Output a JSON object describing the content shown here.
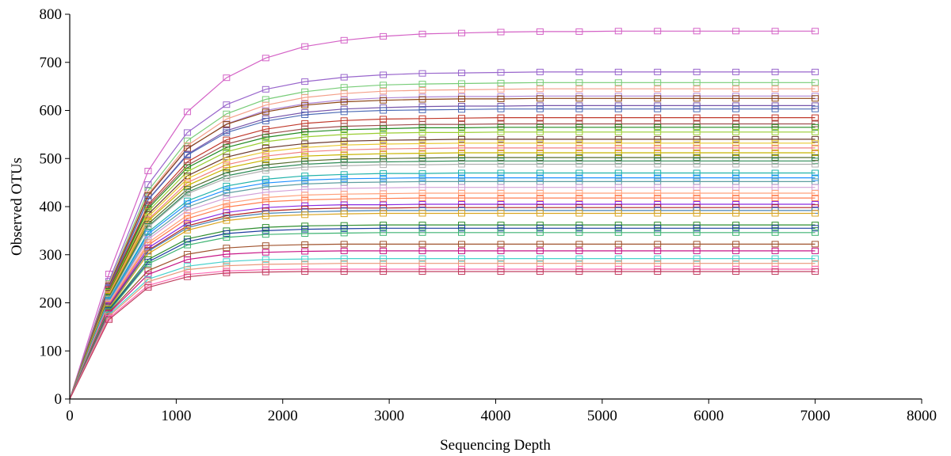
{
  "chart_data": {
    "type": "line",
    "xlabel": "Sequencing Depth",
    "ylabel": "Observed OTUs",
    "xlim": [
      0,
      8000
    ],
    "ylim": [
      0,
      800
    ],
    "xticks": [
      "0",
      "1000",
      "2000",
      "3000",
      "4000",
      "5000",
      "6000",
      "7000",
      "8000"
    ],
    "yticks": [
      "0",
      "100",
      "200",
      "300",
      "400",
      "500",
      "600",
      "700",
      "800"
    ],
    "grid": false,
    "legend": "none",
    "marker": "open-square",
    "x": [
      0,
      368,
      736,
      1104,
      1472,
      1840,
      2208,
      2576,
      2944,
      3312,
      3680,
      4048,
      4416,
      4784,
      5152,
      5520,
      5888,
      6256,
      6624,
      7000
    ],
    "series": [
      {
        "color": "#d462c6",
        "asymptote": 765,
        "v368": 260,
        "k": 0.55
      },
      {
        "color": "#9966cc",
        "asymptote": 680,
        "v368": 245,
        "k": 0.62
      },
      {
        "color": "#77cc77",
        "asymptote": 658,
        "v368": 240,
        "k": 0.62
      },
      {
        "color": "#f4a08a",
        "asymptote": 645,
        "v368": 238,
        "k": 0.62
      },
      {
        "color": "#b088d8",
        "asymptote": 630,
        "v368": 236,
        "k": 0.64
      },
      {
        "color": "#8b4513",
        "asymptote": 625,
        "v368": 235,
        "k": 0.66
      },
      {
        "color": "#7755aa",
        "asymptote": 610,
        "v368": 232,
        "k": 0.66
      },
      {
        "color": "#4d6bb5",
        "asymptote": 603,
        "v368": 230,
        "k": 0.68
      },
      {
        "color": "#c0392b",
        "asymptote": 585,
        "v368": 228,
        "k": 0.68
      },
      {
        "color": "#a05050",
        "asymptote": 572,
        "v368": 225,
        "k": 0.7
      },
      {
        "color": "#228b22",
        "asymptote": 565,
        "v368": 224,
        "k": 0.7
      },
      {
        "color": "#9acd32",
        "asymptote": 555,
        "v368": 222,
        "k": 0.7
      },
      {
        "color": "#6b3a2e",
        "asymptote": 540,
        "v368": 220,
        "k": 0.72
      },
      {
        "color": "#e8c830",
        "asymptote": 532,
        "v368": 218,
        "k": 0.72
      },
      {
        "color": "#f08080",
        "asymptote": 522,
        "v368": 216,
        "k": 0.72
      },
      {
        "color": "#c8b400",
        "asymptote": 512,
        "v368": 214,
        "k": 0.74
      },
      {
        "color": "#556b2f",
        "asymptote": 502,
        "v368": 212,
        "k": 0.74
      },
      {
        "color": "#2e8b57",
        "asymptote": 495,
        "v368": 210,
        "k": 0.74
      },
      {
        "color": "#b0b0b0",
        "asymptote": 488,
        "v368": 208,
        "k": 0.76
      },
      {
        "color": "#20b2aa",
        "asymptote": 470,
        "v368": 206,
        "k": 0.76
      },
      {
        "color": "#1e90ff",
        "asymptote": 460,
        "v368": 204,
        "k": 0.78
      },
      {
        "color": "#5f9ea0",
        "asymptote": 452,
        "v368": 202,
        "k": 0.78
      },
      {
        "color": "#d2a0d8",
        "asymptote": 440,
        "v368": 200,
        "k": 0.8
      },
      {
        "color": "#ffa07a",
        "asymptote": 428,
        "v368": 198,
        "k": 0.8
      },
      {
        "color": "#ff7f50",
        "asymptote": 418,
        "v368": 196,
        "k": 0.82
      },
      {
        "color": "#8a2be2",
        "asymptote": 405,
        "v368": 194,
        "k": 0.84
      },
      {
        "color": "#b22222",
        "asymptote": 398,
        "v368": 192,
        "k": 0.84
      },
      {
        "color": "#4682b4",
        "asymptote": 392,
        "v368": 190,
        "k": 0.86
      },
      {
        "color": "#daa520",
        "asymptote": 386,
        "v368": 188,
        "k": 0.86
      },
      {
        "color": "#2f8f2f",
        "asymptote": 362,
        "v368": 186,
        "k": 0.9
      },
      {
        "color": "#1f3f9f",
        "asymptote": 355,
        "v368": 184,
        "k": 0.9
      },
      {
        "color": "#3cb371",
        "asymptote": 346,
        "v368": 182,
        "k": 0.92
      },
      {
        "color": "#a0522d",
        "asymptote": 322,
        "v368": 180,
        "k": 0.95
      },
      {
        "color": "#c71585",
        "asymptote": 308,
        "v368": 178,
        "k": 0.98
      },
      {
        "color": "#48d1cc",
        "asymptote": 292,
        "v368": 175,
        "k": 1.0
      },
      {
        "color": "#e9967a",
        "asymptote": 282,
        "v368": 172,
        "k": 1.05
      },
      {
        "color": "#ff69b4",
        "asymptote": 270,
        "v368": 168,
        "k": 1.1
      },
      {
        "color": "#c04060",
        "asymptote": 265,
        "v368": 165,
        "k": 1.12
      }
    ]
  }
}
